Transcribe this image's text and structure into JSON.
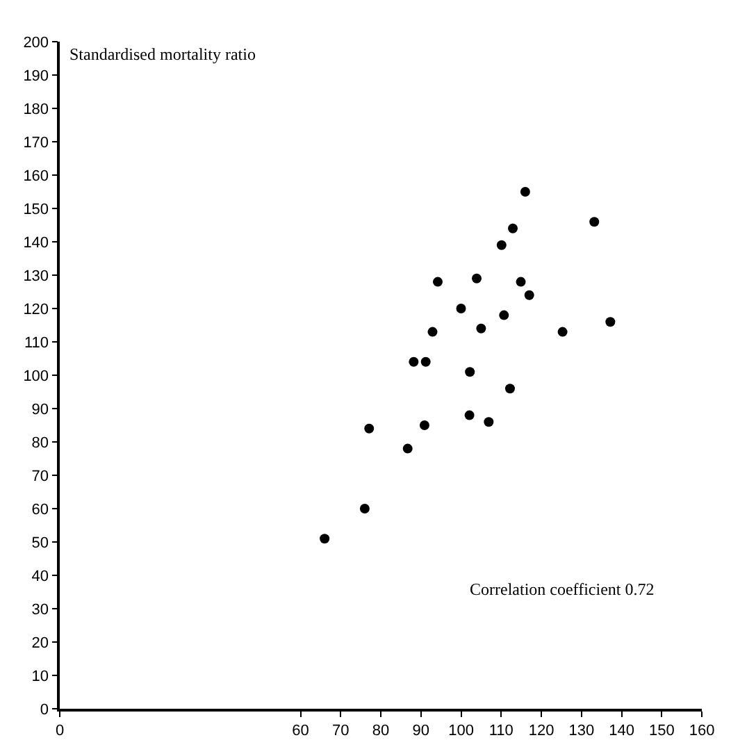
{
  "chart_data": {
    "type": "scatter",
    "ylabel": "Standardised mortality ratio",
    "x": [
      116.0,
      112.9,
      110.1,
      133.2,
      94.2,
      103.9,
      114.9,
      117.0,
      100.0,
      110.7,
      105.0,
      92.9,
      125.3,
      137.2,
      88.2,
      91.2,
      102.2,
      112.2,
      77.1,
      86.7,
      90.9,
      102.1,
      106.9,
      76.0,
      66.0
    ],
    "series": [
      {
        "color": "#000000",
        "values": [
          155,
          144,
          139,
          146,
          128,
          129,
          128,
          124,
          120,
          118,
          114,
          113,
          113,
          116,
          104,
          104,
          101,
          96,
          84,
          78,
          85,
          88,
          86,
          60,
          51
        ]
      }
    ],
    "marker": "circle",
    "xlim": [
      0,
      160
    ],
    "xticks": [
      0,
      60,
      70,
      80,
      90,
      100,
      110,
      120,
      130,
      140,
      150,
      160
    ],
    "ylim": [
      0,
      200
    ],
    "yticks": [
      0,
      10,
      20,
      30,
      40,
      50,
      60,
      70,
      80,
      90,
      100,
      110,
      120,
      130,
      140,
      150,
      160,
      170,
      180,
      190,
      200
    ],
    "annotations": [
      "Correlation coefficient 0.72"
    ]
  }
}
